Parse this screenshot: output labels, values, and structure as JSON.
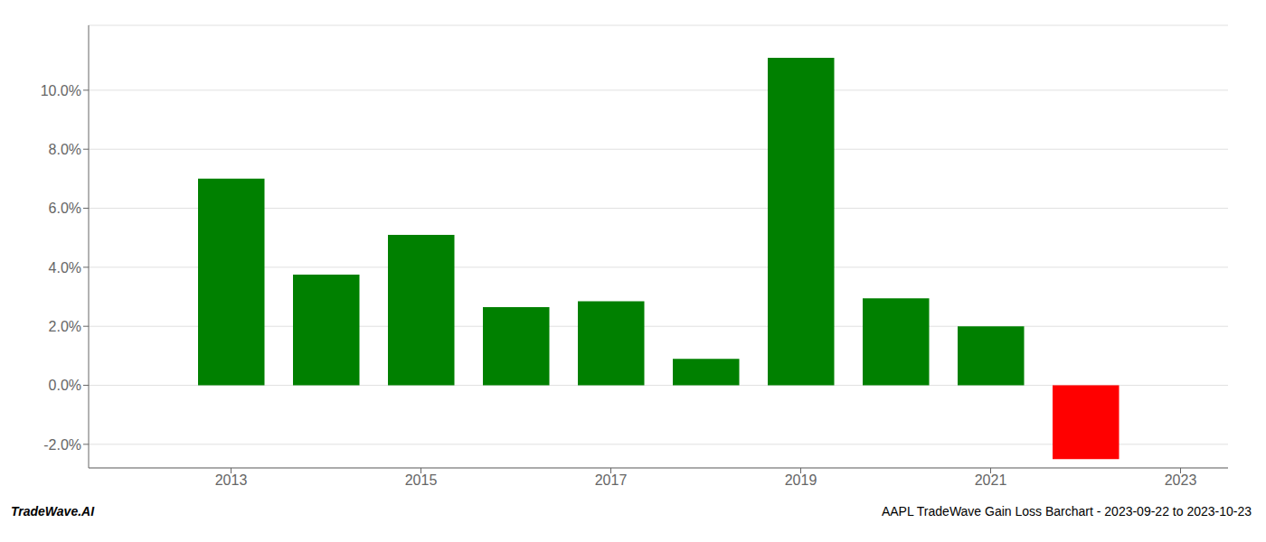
{
  "chart_data": {
    "type": "bar",
    "x": [
      2013,
      2014,
      2015,
      2016,
      2017,
      2018,
      2019,
      2020,
      2021,
      2022
    ],
    "values": [
      0.07,
      0.0375,
      0.051,
      0.0265,
      0.0285,
      0.009,
      0.111,
      0.0295,
      0.02,
      -0.025
    ],
    "colors": [
      "#008000",
      "#008000",
      "#008000",
      "#008000",
      "#008000",
      "#008000",
      "#008000",
      "#008000",
      "#008000",
      "#ff0000"
    ],
    "xlim": [
      2011.5,
      2023.5
    ],
    "xticks": [
      2013,
      2015,
      2017,
      2019,
      2021,
      2023
    ],
    "ylim": [
      -0.028,
      0.122
    ],
    "yticks": [
      {
        "value": -0.02,
        "label": "-2.0%"
      },
      {
        "value": 0.0,
        "label": "0.0%"
      },
      {
        "value": 0.02,
        "label": "2.0%"
      },
      {
        "value": 0.04,
        "label": "4.0%"
      },
      {
        "value": 0.06,
        "label": "6.0%"
      },
      {
        "value": 0.08,
        "label": "8.0%"
      },
      {
        "value": 0.1,
        "label": "10.0%"
      }
    ],
    "grid": true,
    "annotations": [
      "TradeWave.AI",
      "AAPL TradeWave Gain Loss Barchart - 2023-09-22 to 2023-10-23"
    ]
  }
}
